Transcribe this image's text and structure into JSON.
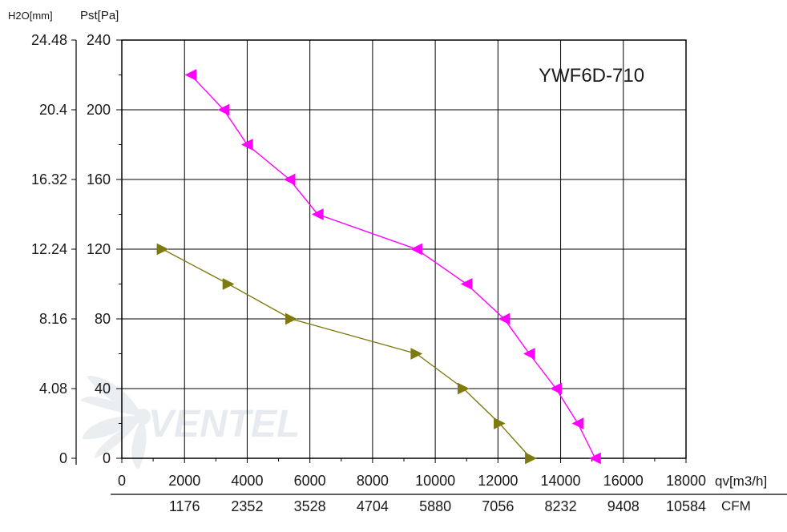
{
  "chart_data": {
    "type": "line",
    "title": "YWF6D-710",
    "x_unit_label": "qv[m3/h]",
    "cfm_unit_label": "CFM",
    "y_left_unit_label": "H2O[mm]",
    "y_right_unit_label": "Pst[Pa]",
    "x_ticks": [
      "0",
      "2000",
      "4000",
      "6000",
      "8000",
      "10000",
      "12000",
      "14000",
      "16000",
      "18000"
    ],
    "cfm_ticks": [
      "1176",
      "2352",
      "3528",
      "4704",
      "5880",
      "7056",
      "8232",
      "9408",
      "10584"
    ],
    "y_pa_ticks": [
      "0",
      "40",
      "80",
      "120",
      "160",
      "200",
      "240"
    ],
    "y_mm_ticks": [
      "0",
      "4.08",
      "8.16",
      "12.24",
      "16.32",
      "20.4",
      "24.48"
    ],
    "xlim": [
      0,
      18000
    ],
    "ylim": [
      0,
      240
    ],
    "grid": true,
    "watermark_text": "VENTEL",
    "series": [
      {
        "name": "",
        "color": "#ff00ff",
        "marker": "triangle-left",
        "x": [
          2200,
          3250,
          4000,
          5350,
          6250,
          9400,
          11000,
          12200,
          13000,
          13850,
          14550,
          15100
        ],
        "y": [
          220,
          200,
          180,
          160,
          140,
          120,
          100,
          80,
          60,
          40,
          20,
          0
        ]
      },
      {
        "name": "",
        "color": "#7f7a10",
        "marker": "triangle-right",
        "x": [
          1300,
          3400,
          5400,
          9400,
          10900,
          12050,
          13050
        ],
        "y": [
          120,
          100,
          80,
          60,
          40,
          20,
          0
        ]
      }
    ]
  }
}
